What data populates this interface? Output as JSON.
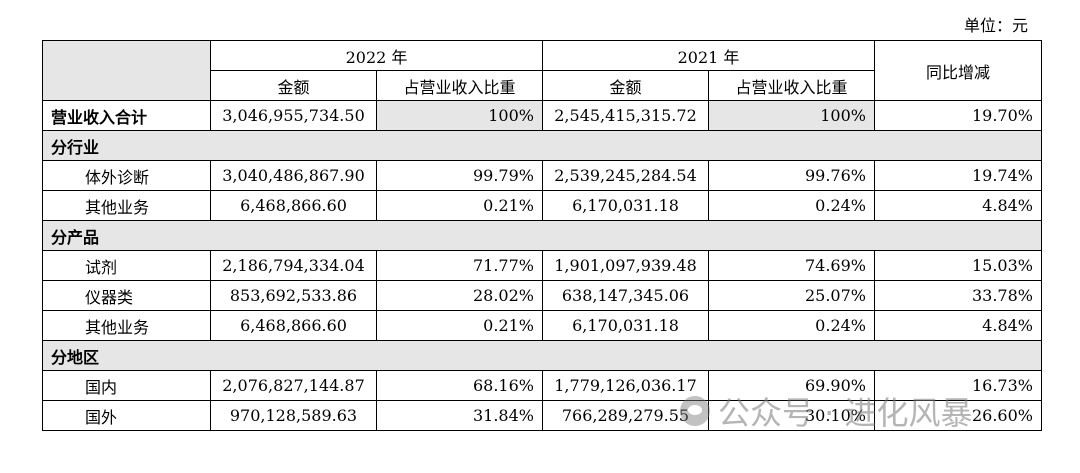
{
  "unit_note": "单位：元",
  "header": {
    "year_2022": "2022 年",
    "year_2021": "2021 年",
    "yoy": "同比增减",
    "amount": "金额",
    "ratio": "占营业收入比重"
  },
  "total_row": {
    "label": "营业收入合计",
    "amount_2022": "3,046,955,734.50",
    "ratio_2022": "100%",
    "amount_2021": "2,545,415,315.72",
    "ratio_2021": "100%",
    "yoy": "19.70%"
  },
  "sections": [
    {
      "title": "分行业",
      "rows": [
        {
          "label": "体外诊断",
          "amount_2022": "3,040,486,867.90",
          "ratio_2022": "99.79%",
          "amount_2021": "2,539,245,284.54",
          "ratio_2021": "99.76%",
          "yoy": "19.74%"
        },
        {
          "label": "其他业务",
          "amount_2022": "6,468,866.60",
          "ratio_2022": "0.21%",
          "amount_2021": "6,170,031.18",
          "ratio_2021": "0.24%",
          "yoy": "4.84%"
        }
      ]
    },
    {
      "title": "分产品",
      "rows": [
        {
          "label": "试剂",
          "amount_2022": "2,186,794,334.04",
          "ratio_2022": "71.77%",
          "amount_2021": "1,901,097,939.48",
          "ratio_2021": "74.69%",
          "yoy": "15.03%"
        },
        {
          "label": "仪器类",
          "amount_2022": "853,692,533.86",
          "ratio_2022": "28.02%",
          "amount_2021": "638,147,345.06",
          "ratio_2021": "25.07%",
          "yoy": "33.78%"
        },
        {
          "label": "其他业务",
          "amount_2022": "6,468,866.60",
          "ratio_2022": "0.21%",
          "amount_2021": "6,170,031.18",
          "ratio_2021": "0.24%",
          "yoy": "4.84%"
        }
      ]
    },
    {
      "title": "分地区",
      "rows": [
        {
          "label": "国内",
          "amount_2022": "2,076,827,144.87",
          "ratio_2022": "68.16%",
          "amount_2021": "1,779,126,036.17",
          "ratio_2021": "69.90%",
          "yoy": "16.73%"
        },
        {
          "label": "国外",
          "amount_2022": "970,128,589.63",
          "ratio_2022": "31.84%",
          "amount_2021": "766,289,279.55",
          "ratio_2021": "30.10%",
          "yoy": "26.60%"
        }
      ]
    }
  ],
  "watermark": "公众号 · 进化风暴",
  "watermark_icon": "wechat-icon"
}
